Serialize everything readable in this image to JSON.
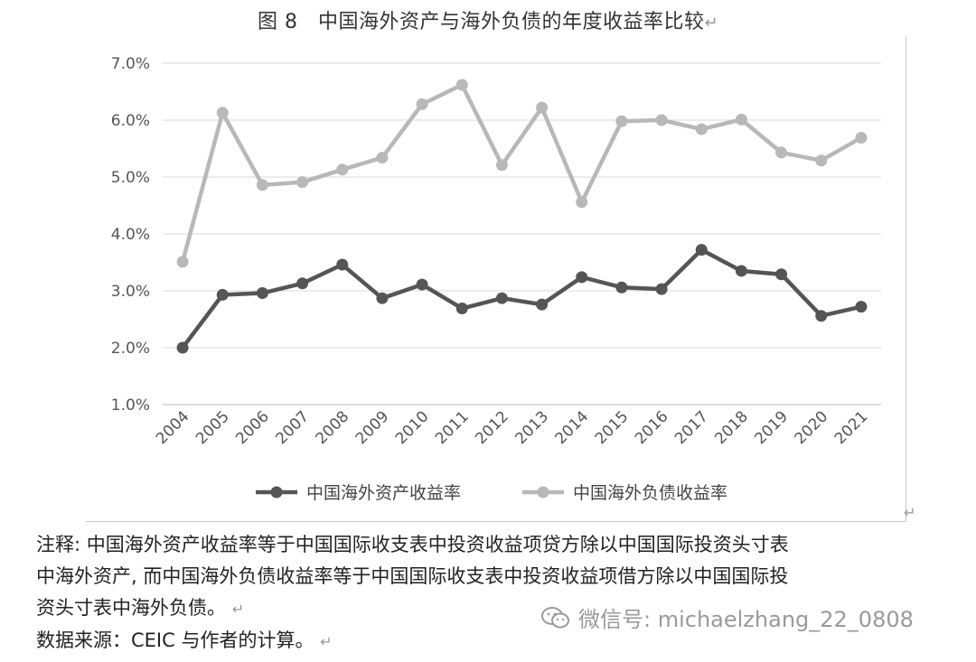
{
  "figure": {
    "title": "图 8　中国海外资产与海外负债的年度收益率比较",
    "return_mark": "↵"
  },
  "chart_data": {
    "type": "line",
    "title": "",
    "xlabel": "",
    "ylabel": "",
    "x": [
      "2004",
      "2005",
      "2006",
      "2007",
      "2008",
      "2009",
      "2010",
      "2011",
      "2012",
      "2013",
      "2014",
      "2015",
      "2016",
      "2017",
      "2018",
      "2019",
      "2020",
      "2021"
    ],
    "y_ticks": [
      "1.0%",
      "2.0%",
      "3.0%",
      "4.0%",
      "5.0%",
      "6.0%",
      "7.0%"
    ],
    "ylim": [
      1.0,
      7.0
    ],
    "grid": true,
    "legend_position": "bottom",
    "series": [
      {
        "name": "中国海外资产收益率",
        "color": "#555555",
        "values": [
          2.0,
          2.93,
          2.96,
          3.13,
          3.46,
          2.87,
          3.11,
          2.69,
          2.87,
          2.76,
          3.24,
          3.06,
          3.03,
          3.72,
          3.35,
          3.29,
          2.56,
          2.72
        ]
      },
      {
        "name": "中国海外负债收益率",
        "color": "#b8b8b8",
        "values": [
          3.51,
          6.13,
          4.86,
          4.91,
          5.13,
          5.34,
          6.28,
          6.62,
          5.21,
          6.22,
          4.56,
          5.98,
          6.0,
          5.84,
          6.01,
          5.43,
          5.29,
          5.69
        ]
      }
    ]
  },
  "notes": {
    "line1": "注释: 中国海外资产收益率等于中国国际收支表中投资收益项贷方除以中国国际投资头寸表",
    "line2": "中海外资产, 而中国海外负债收益率等于中国国际收支表中投资收益项借方除以中国国际投",
    "line3": "资头寸表中海外负债。",
    "line4": "数据来源：CEIC 与作者的计算。"
  },
  "watermark": {
    "text": "微信号: michaelzhang_22_0808",
    "icon": "wechat-icon"
  }
}
